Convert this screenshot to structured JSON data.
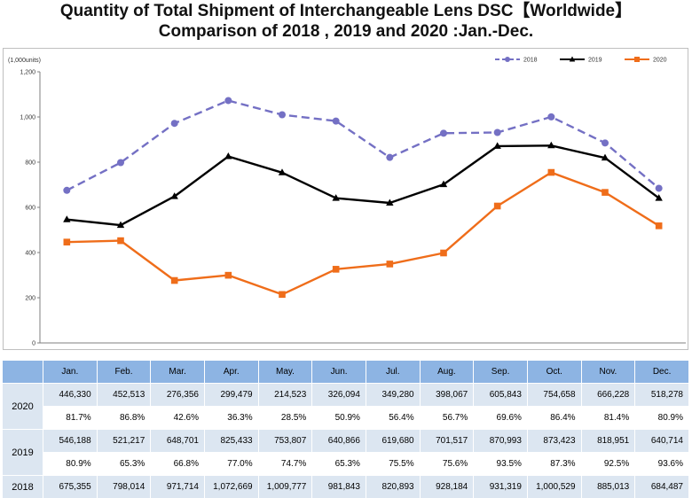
{
  "title_line1": "Quantity of Total Shipment of Interchangeable Lens DSC【Worldwide】",
  "title_line2": "Comparison of 2018 , 2019 and 2020 :Jan.-Dec.",
  "colors": {
    "s2018": "#7470c4",
    "s2019": "#000000",
    "s2020": "#ef6d1a",
    "header_bg": "#8db4e3",
    "row_bg": "#dce6f1"
  },
  "chart_data": {
    "type": "line",
    "unit_label": "(1,000units)",
    "categories": [
      "Jan.",
      "Feb.",
      "Mar.",
      "Apr.",
      "May.",
      "Jun.",
      "Jul.",
      "Aug.",
      "Sep.",
      "Oct.",
      "Nov.",
      "Dec."
    ],
    "ylim": [
      0,
      1200
    ],
    "yticks": [
      0,
      200,
      400,
      600,
      800,
      1000,
      1200
    ],
    "ytick_labels": [
      "0",
      "200",
      "400",
      "600",
      "800",
      "1,000",
      "1,200"
    ],
    "grid": false,
    "legend_position": "top-right",
    "series": [
      {
        "name": "2018",
        "marker": "circle",
        "style": "dashed",
        "color": "#7470c4",
        "values": [
          675.355,
          798.014,
          971.714,
          1072.669,
          1009.777,
          981.843,
          820.893,
          928.184,
          931.319,
          1000.529,
          885.013,
          684.487
        ]
      },
      {
        "name": "2019",
        "marker": "triangle",
        "style": "solid",
        "color": "#000000",
        "values": [
          546.188,
          521.217,
          648.701,
          825.433,
          753.807,
          640.866,
          619.68,
          701.517,
          870.993,
          873.423,
          818.951,
          640.714
        ]
      },
      {
        "name": "2020",
        "marker": "square",
        "style": "solid",
        "color": "#ef6d1a",
        "values": [
          446.33,
          452.513,
          276.356,
          299.479,
          214.523,
          326.094,
          349.28,
          398.067,
          605.843,
          754.658,
          666.228,
          518.278
        ]
      }
    ]
  },
  "table": {
    "months": [
      "Jan.",
      "Feb.",
      "Mar.",
      "Apr.",
      "May.",
      "Jun.",
      "Jul.",
      "Aug.",
      "Sep.",
      "Oct.",
      "Nov.",
      "Dec."
    ],
    "rows": [
      {
        "year": "2020",
        "units": [
          "446,330",
          "452,513",
          "276,356",
          "299,479",
          "214,523",
          "326,094",
          "349,280",
          "398,067",
          "605,843",
          "754,658",
          "666,228",
          "518,278"
        ],
        "ratio": [
          "81.7%",
          "86.8%",
          "42.6%",
          "36.3%",
          "28.5%",
          "50.9%",
          "56.4%",
          "56.7%",
          "69.6%",
          "86.4%",
          "81.4%",
          "80.9%"
        ]
      },
      {
        "year": "2019",
        "units": [
          "546,188",
          "521,217",
          "648,701",
          "825,433",
          "753,807",
          "640,866",
          "619,680",
          "701,517",
          "870,993",
          "873,423",
          "818,951",
          "640,714"
        ],
        "ratio": [
          "80.9%",
          "65.3%",
          "66.8%",
          "77.0%",
          "74.7%",
          "65.3%",
          "75.5%",
          "75.6%",
          "93.5%",
          "87.3%",
          "92.5%",
          "93.6%"
        ]
      },
      {
        "year": "2018",
        "units": [
          "675,355",
          "798,014",
          "971,714",
          "1,072,669",
          "1,009,777",
          "981,843",
          "820,893",
          "928,184",
          "931,319",
          "1,000,529",
          "885,013",
          "684,487"
        ]
      }
    ]
  }
}
